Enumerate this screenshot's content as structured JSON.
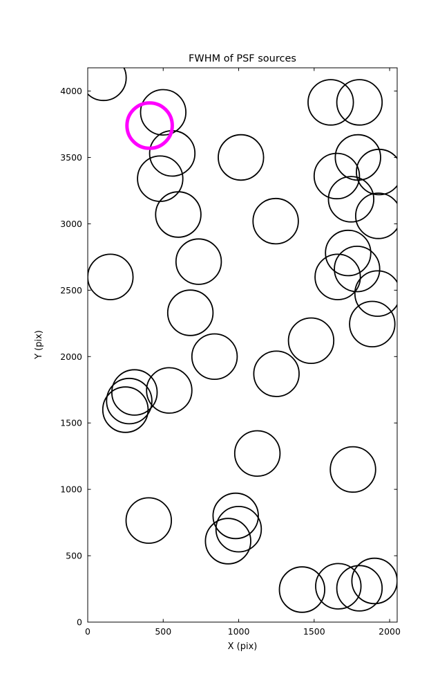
{
  "chart_data": {
    "type": "scatter",
    "title": "FWHM of PSF sources",
    "xlabel": "X (pix)",
    "ylabel": "Y (pix)",
    "xlim": [
      0,
      2050
    ],
    "ylim": [
      0,
      4175
    ],
    "xticks": [
      0,
      500,
      1000,
      1500,
      2000
    ],
    "yticks": [
      0,
      500,
      1000,
      1500,
      2000,
      2500,
      3000,
      3500,
      4000
    ],
    "grid": false,
    "legend": null,
    "marker_shape": "open-circle",
    "marker_radius_data_pix": 150,
    "marker_linewidth": 1.8,
    "highlight_linewidth": 5,
    "colors": {
      "source": "#000000",
      "highlight": "#ff00ff",
      "axes": "#000000",
      "background": "#ffffff"
    },
    "sources": [
      [
        105,
        4100
      ],
      [
        500,
        3840
      ],
      [
        560,
        3530
      ],
      [
        480,
        3340
      ],
      [
        600,
        3070
      ],
      [
        1015,
        3500
      ],
      [
        1245,
        3020
      ],
      [
        1610,
        3915
      ],
      [
        1800,
        3915
      ],
      [
        1790,
        3500
      ],
      [
        1650,
        3360
      ],
      [
        1930,
        3390
      ],
      [
        1745,
        3185
      ],
      [
        1925,
        3060
      ],
      [
        1725,
        2780
      ],
      [
        1656,
        2600
      ],
      [
        1784,
        2660
      ],
      [
        1920,
        2475
      ],
      [
        1885,
        2245
      ],
      [
        150,
        2600
      ],
      [
        735,
        2715
      ],
      [
        680,
        2330
      ],
      [
        840,
        2000
      ],
      [
        1480,
        2120
      ],
      [
        1250,
        1870
      ],
      [
        540,
        1745
      ],
      [
        310,
        1730
      ],
      [
        275,
        1665
      ],
      [
        250,
        1600
      ],
      [
        1124,
        1270
      ],
      [
        1757,
        1150
      ],
      [
        404,
        765
      ],
      [
        980,
        800
      ],
      [
        1000,
        700
      ],
      [
        930,
        610
      ],
      [
        1420,
        245
      ],
      [
        1660,
        270
      ],
      [
        1800,
        255
      ],
      [
        1900,
        310
      ]
    ],
    "highlighted_source": [
      410,
      3740
    ]
  }
}
